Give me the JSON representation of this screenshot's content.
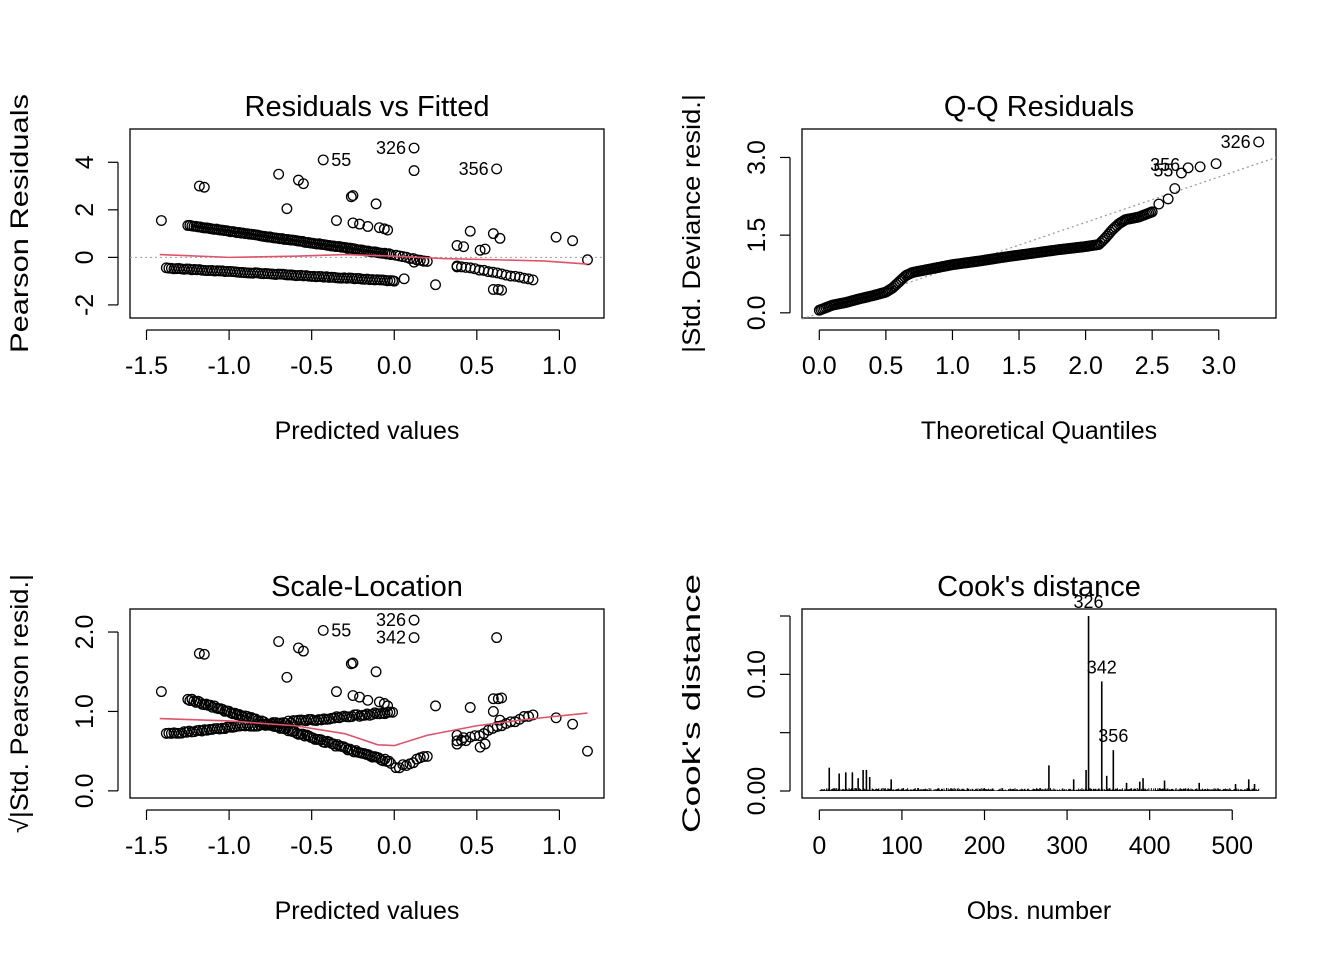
{
  "colors": {
    "ink": "#000000",
    "smoother": "#DF536B",
    "reference": "#9E9E9E"
  },
  "chart_data": [
    {
      "id": "rvf",
      "type": "scatter",
      "title": "Residuals vs Fitted",
      "xlabel": "Predicted values",
      "ylabel": "Pearson Residuals",
      "xlim": [
        -1.6,
        1.27
      ],
      "ylim": [
        -2.55,
        5.4
      ],
      "xticks": [
        -1.5,
        -1.0,
        -0.5,
        0.0,
        0.5,
        1.0
      ],
      "xtick_labels": [
        "-1.5",
        "-1.0",
        "-0.5",
        "0.0",
        "0.5",
        "1.0"
      ],
      "yticks": [
        -2,
        0,
        2,
        4
      ],
      "ytick_labels": [
        "-2",
        "0",
        "2",
        "4"
      ],
      "ref_line": 0,
      "bands": [
        {
          "from": [
            -1.25,
            1.35
          ],
          "to": [
            -0.02,
            0.13
          ],
          "n": 100
        },
        {
          "from": [
            -1.38,
            -0.45
          ],
          "to": [
            -0.01,
            -0.98
          ],
          "n": 90
        },
        {
          "from": [
            0.38,
            -0.35
          ],
          "to": [
            0.84,
            -0.95
          ],
          "n": 18
        },
        {
          "from": [
            0.01,
            0.08
          ],
          "to": [
            0.2,
            -0.18
          ],
          "n": 10
        }
      ],
      "x": [
        -1.41,
        -1.15,
        -1.18,
        -0.7,
        -0.58,
        -0.55,
        -0.65,
        -0.35,
        -0.26,
        -0.25,
        -0.11,
        -0.25,
        -0.21,
        -0.16,
        -0.09,
        -0.06,
        -0.04,
        0.25,
        0.38,
        0.38,
        0.42,
        0.46,
        0.52,
        0.55,
        0.6,
        0.64,
        0.6,
        0.63,
        0.65,
        0.98,
        1.08,
        1.17,
        0.0,
        0.06,
        0.12,
        0.18,
        -0.43,
        0.12,
        0.62
      ],
      "y": [
        1.55,
        2.95,
        3.0,
        3.5,
        3.25,
        3.1,
        2.05,
        1.55,
        2.55,
        2.6,
        2.25,
        1.45,
        1.4,
        1.3,
        1.25,
        1.2,
        1.15,
        -1.15,
        0.5,
        -0.4,
        0.45,
        1.1,
        0.3,
        0.35,
        1.0,
        0.8,
        -1.35,
        -1.35,
        -1.38,
        0.85,
        0.7,
        -0.1,
        -1.0,
        -0.9,
        -0.2,
        -0.15,
        4.1,
        3.65,
        3.72
      ],
      "smoother": {
        "x": [
          -1.42,
          -1.0,
          -0.6,
          -0.3,
          0.0,
          0.3,
          0.6,
          0.9,
          1.17
        ],
        "y": [
          0.12,
          0.0,
          0.05,
          0.12,
          0.05,
          -0.05,
          -0.1,
          -0.15,
          -0.28
        ]
      },
      "labels": [
        {
          "text": "55",
          "x": -0.43,
          "y": 4.1,
          "side": "right"
        },
        {
          "text": "326",
          "x": 0.12,
          "y": 4.6,
          "side": "left"
        },
        {
          "text": "356",
          "x": 0.62,
          "y": 3.72,
          "side": "left"
        }
      ],
      "labeled_points": {
        "x": [
          0.12
        ],
        "y": [
          4.6
        ]
      }
    },
    {
      "id": "qq",
      "type": "scatter",
      "title": "Q-Q Residuals",
      "xlabel": "Theoretical Quantiles",
      "ylabel": "|Std. Deviance resid.|",
      "xlim": [
        -0.13,
        3.43
      ],
      "ylim": [
        -0.1,
        3.55
      ],
      "xticks": [
        0.0,
        0.5,
        1.0,
        1.5,
        2.0,
        2.5,
        3.0
      ],
      "xtick_labels": [
        "0.0",
        "0.5",
        "1.0",
        "1.5",
        "2.0",
        "2.5",
        "3.0"
      ],
      "yticks": [
        0.0,
        1.5,
        3.0
      ],
      "ytick_labels": [
        "0.0",
        "1.5",
        "3.0"
      ],
      "ref_line": {
        "x": [
          -0.13,
          3.43
        ],
        "y": [
          -0.12,
          3.0
        ]
      },
      "curve": {
        "x": [
          0.0,
          0.1,
          0.2,
          0.3,
          0.4,
          0.5,
          0.55,
          0.6,
          0.65,
          0.7,
          0.8,
          0.9,
          1.0,
          1.2,
          1.4,
          1.6,
          1.8,
          2.0,
          2.1,
          2.15,
          2.2,
          2.25,
          2.3,
          2.4,
          2.5
        ],
        "y": [
          0.05,
          0.15,
          0.2,
          0.27,
          0.33,
          0.4,
          0.48,
          0.6,
          0.72,
          0.78,
          0.83,
          0.88,
          0.93,
          1.0,
          1.08,
          1.15,
          1.22,
          1.28,
          1.32,
          1.45,
          1.6,
          1.72,
          1.8,
          1.85,
          1.95
        ]
      },
      "n": 200,
      "x": [
        2.55,
        2.62,
        2.67,
        2.72,
        2.77,
        2.86,
        2.98
      ],
      "y": [
        2.1,
        2.2,
        2.4,
        2.7,
        2.8,
        2.82,
        2.88
      ],
      "labels": [
        {
          "text": "326",
          "x": 3.3,
          "y": 3.3,
          "side": "left"
        },
        {
          "text": "356",
          "x": 2.77,
          "y": 2.85,
          "side": "left"
        },
        {
          "text": "55",
          "x": 2.72,
          "y": 2.75,
          "side": "left"
        }
      ],
      "labeled_points": {
        "x": [
          3.3
        ],
        "y": [
          3.3
        ]
      }
    },
    {
      "id": "sl",
      "type": "scatter",
      "title": "Scale-Location",
      "xlabel": "Predicted values",
      "ylabel": "√|Std. Pearson resid.|",
      "xlim": [
        -1.6,
        1.27
      ],
      "ylim": [
        -0.09,
        2.29
      ],
      "xticks": [
        -1.5,
        -1.0,
        -0.5,
        0.0,
        0.5,
        1.0
      ],
      "xtick_labels": [
        "-1.5",
        "-1.0",
        "-0.5",
        "0.0",
        "0.5",
        "1.0"
      ],
      "yticks": [
        0.0,
        1.0,
        2.0
      ],
      "ytick_labels": [
        "0.0",
        "1.0",
        "2.0"
      ],
      "bands": [
        {
          "from": [
            -1.25,
            1.16
          ],
          "to": [
            -0.02,
            0.36
          ],
          "n": 100
        },
        {
          "from": [
            -1.38,
            0.72
          ],
          "to": [
            -0.01,
            0.99
          ],
          "n": 90
        },
        {
          "from": [
            0.38,
            0.6
          ],
          "to": [
            0.84,
            0.97
          ],
          "n": 18
        },
        {
          "from": [
            0.01,
            0.28
          ],
          "to": [
            0.2,
            0.44
          ],
          "n": 10
        }
      ],
      "x": [
        -1.41,
        -1.15,
        -1.18,
        -0.7,
        -0.58,
        -0.55,
        -0.65,
        -0.35,
        -0.26,
        -0.25,
        -0.11,
        -0.25,
        -0.21,
        -0.16,
        -0.09,
        -0.06,
        -0.04,
        0.25,
        0.38,
        0.38,
        0.42,
        0.46,
        0.52,
        0.55,
        0.6,
        0.64,
        0.6,
        0.63,
        0.65,
        0.98,
        1.08,
        1.17,
        -0.43,
        0.12,
        0.12,
        0.62
      ],
      "y": [
        1.25,
        1.72,
        1.73,
        1.88,
        1.8,
        1.76,
        1.43,
        1.25,
        1.6,
        1.61,
        1.5,
        1.2,
        1.18,
        1.14,
        1.12,
        1.1,
        1.07,
        1.07,
        0.7,
        0.63,
        0.67,
        1.05,
        0.55,
        0.59,
        1.0,
        0.89,
        1.16,
        1.16,
        1.17,
        0.92,
        0.84,
        0.5,
        2.02,
        2.15,
        1.93,
        1.93
      ],
      "smoother": {
        "x": [
          -1.42,
          -1.0,
          -0.6,
          -0.3,
          -0.1,
          0.0,
          0.2,
          0.5,
          0.8,
          1.17
        ],
        "y": [
          0.91,
          0.88,
          0.82,
          0.72,
          0.58,
          0.57,
          0.7,
          0.82,
          0.9,
          0.98
        ]
      },
      "labels": [
        {
          "text": "55",
          "x": -0.43,
          "y": 2.02,
          "side": "right"
        },
        {
          "text": "326",
          "x": 0.12,
          "y": 2.15,
          "side": "left"
        },
        {
          "text": "342",
          "x": 0.12,
          "y": 1.93,
          "side": "left"
        }
      ]
    },
    {
      "id": "cooks",
      "type": "bar",
      "title": "Cook's distance",
      "xlabel": "Obs. number",
      "ylabel": "Cook's distance",
      "xlim": [
        -21,
        553
      ],
      "ylim": [
        -0.006,
        0.156
      ],
      "xticks": [
        0,
        100,
        200,
        300,
        400,
        500
      ],
      "xtick_labels": [
        "0",
        "100",
        "200",
        "300",
        "400",
        "500"
      ],
      "yticks": [
        0.0,
        0.05,
        0.1,
        0.15
      ],
      "ytick_labels": [
        "0.00",
        "",
        "0.10",
        ""
      ],
      "n_obs": 532,
      "bars": {
        "x": [
          12,
          24,
          32,
          40,
          47,
          53,
          57,
          61,
          87,
          278,
          308,
          323,
          326,
          342,
          348,
          356,
          372,
          388,
          392,
          418,
          460,
          504,
          520,
          527
        ],
        "y": [
          0.02,
          0.015,
          0.016,
          0.016,
          0.011,
          0.018,
          0.018,
          0.012,
          0.01,
          0.022,
          0.01,
          0.018,
          0.15,
          0.094,
          0.013,
          0.035,
          0.007,
          0.008,
          0.011,
          0.009,
          0.007,
          0.006,
          0.01,
          0.006
        ]
      },
      "labels": [
        {
          "text": "326",
          "x": 326,
          "y": 0.15
        },
        {
          "text": "342",
          "x": 342,
          "y": 0.094
        },
        {
          "text": "356",
          "x": 356,
          "y": 0.035
        }
      ]
    }
  ]
}
